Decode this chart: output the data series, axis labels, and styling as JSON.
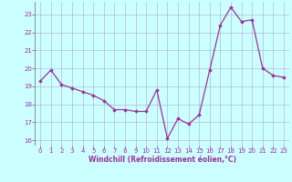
{
  "x": [
    0,
    1,
    2,
    3,
    4,
    5,
    6,
    7,
    8,
    9,
    10,
    11,
    12,
    13,
    14,
    15,
    16,
    17,
    18,
    19,
    20,
    21,
    22,
    23
  ],
  "y": [
    19.3,
    19.9,
    19.1,
    18.9,
    18.7,
    18.5,
    18.2,
    17.7,
    17.7,
    17.6,
    17.6,
    18.8,
    16.1,
    17.2,
    16.9,
    17.4,
    19.9,
    22.4,
    23.4,
    22.6,
    22.7,
    20.0,
    19.6,
    19.5
  ],
  "line_color": "#993399",
  "marker": "D",
  "marker_size": 1.8,
  "linewidth": 0.9,
  "bg_color": "#ccffff",
  "grid_color": "#aaaacc",
  "xlabel": "Windchill (Refroidissement éolien,°C)",
  "xlabel_color": "#993399",
  "tick_color": "#993399",
  "label_color": "#993399",
  "ylim": [
    15.7,
    23.7
  ],
  "xlim": [
    -0.5,
    23.5
  ],
  "yticks": [
    16,
    17,
    18,
    19,
    20,
    21,
    22,
    23
  ],
  "xticks": [
    0,
    1,
    2,
    3,
    4,
    5,
    6,
    7,
    8,
    9,
    10,
    11,
    12,
    13,
    14,
    15,
    16,
    17,
    18,
    19,
    20,
    21,
    22,
    23
  ],
  "tick_fontsize": 5.0,
  "xlabel_fontsize": 5.5,
  "xlabel_fontweight": "bold"
}
